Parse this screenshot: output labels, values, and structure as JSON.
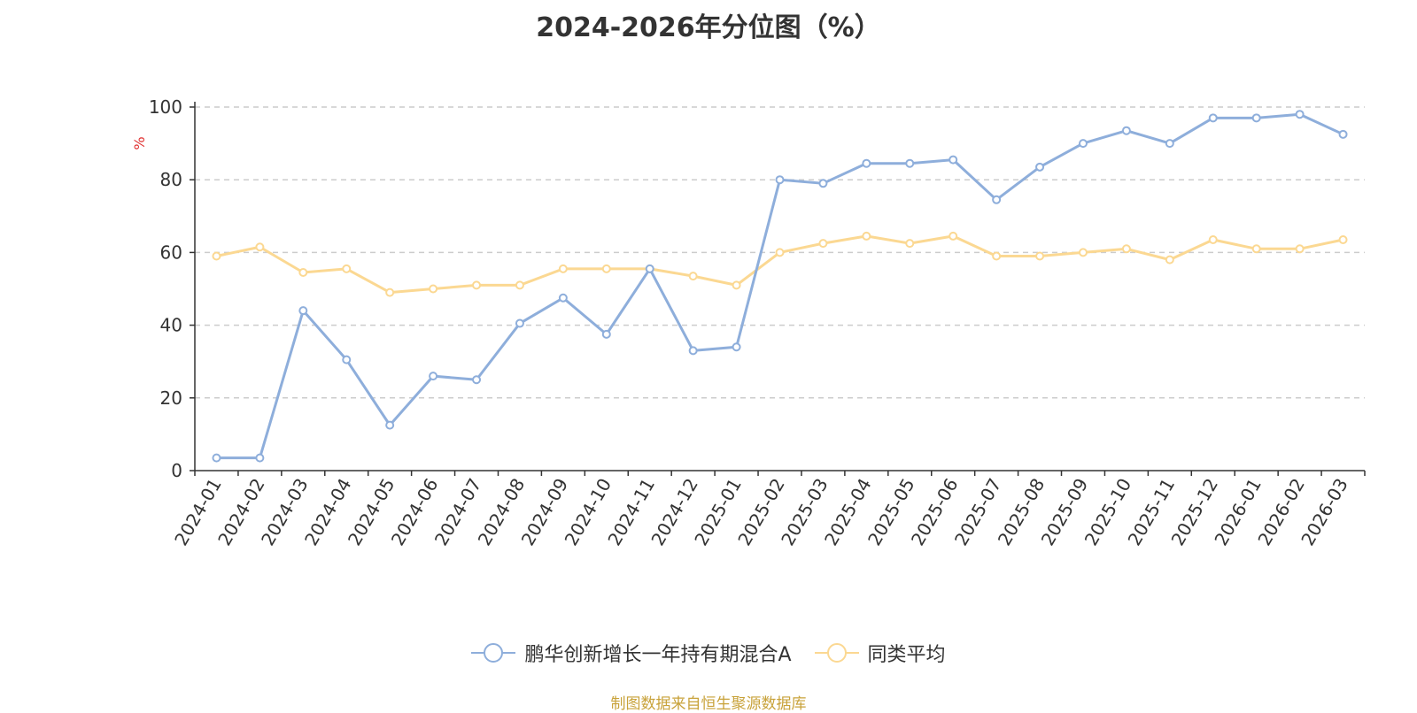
{
  "chart_data": {
    "type": "line",
    "title": "2024-2026年分位图（%）",
    "ylabel": "%",
    "xlabel": "",
    "ylim": [
      0,
      100
    ],
    "yticks": [
      0,
      20,
      40,
      60,
      80,
      100
    ],
    "grid": true,
    "legend_position": "bottom",
    "categories": [
      "2024-01",
      "2024-02",
      "2024-03",
      "2024-04",
      "2024-05",
      "2024-06",
      "2024-07",
      "2024-08",
      "2024-09",
      "2024-10",
      "2024-11",
      "2024-12",
      "2025-01",
      "2025-02",
      "2025-03",
      "2025-04",
      "2025-05",
      "2025-06",
      "2025-07",
      "2025-08",
      "2025-09",
      "2025-10",
      "2025-11",
      "2025-12",
      "2026-01",
      "2026-02",
      "2026-03"
    ],
    "series": [
      {
        "name": "鹏华创新增长一年持有期混合A",
        "color": "#8eaedb",
        "values": [
          3.5,
          3.5,
          44,
          30.5,
          12.5,
          26,
          25,
          40.5,
          47.5,
          37.5,
          55.5,
          33,
          34,
          80,
          79,
          84.5,
          84.5,
          85.5,
          74.5,
          83.5,
          90,
          93.5,
          90,
          97,
          97,
          98,
          92.5
        ]
      },
      {
        "name": "同类平均",
        "color": "#fbd892",
        "values": [
          59,
          61.5,
          54.5,
          55.5,
          49,
          50,
          51,
          51,
          55.5,
          55.5,
          55.5,
          53.5,
          51,
          60,
          62.5,
          64.5,
          62.5,
          64.5,
          59,
          59,
          60,
          61,
          58,
          63.5,
          61,
          61,
          63.5
        ]
      }
    ],
    "source": "制图数据来自恒生聚源数据库"
  }
}
